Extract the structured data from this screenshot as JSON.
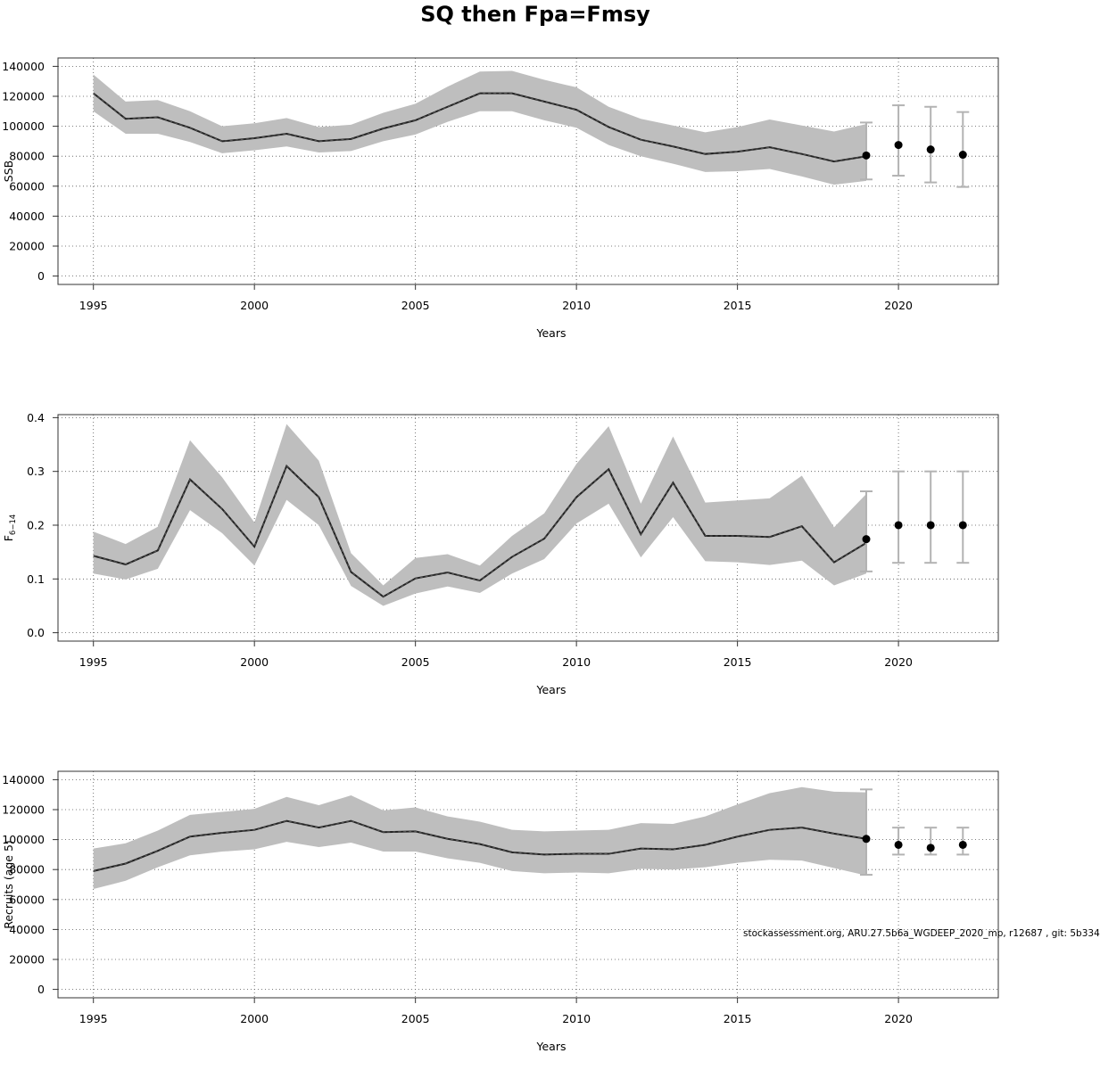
{
  "title": "SQ then Fpa=Fmsy",
  "footnote": "stockassessment.org, ARU.27.5b6a_WGDEEP_2020_mp, r12687 , git: 5b334",
  "colors": {
    "band": "#bebebe",
    "line": "#222222",
    "point": "#000000",
    "errorbar": "#b3b3b3"
  },
  "chart_data": [
    {
      "type": "line",
      "ylabel": "SSB",
      "xlabel": "Years",
      "xlim": [
        1993.9,
        2023.1
      ],
      "ylim": [
        -5600,
        145600
      ],
      "xticks": [
        1995,
        2000,
        2005,
        2010,
        2015,
        2020
      ],
      "yticks": [
        0,
        20000,
        40000,
        60000,
        80000,
        100000,
        120000,
        140000
      ],
      "grid": true,
      "x": [
        1995,
        1996,
        1997,
        1998,
        1999,
        2000,
        2001,
        2002,
        2003,
        2004,
        2005,
        2006,
        2007,
        2008,
        2009,
        2010,
        2011,
        2012,
        2013,
        2014,
        2015,
        2016,
        2017,
        2018,
        2019
      ],
      "y": [
        122000,
        105000,
        106000,
        99000,
        90000,
        92000,
        95000,
        90000,
        91500,
        98500,
        104000,
        113000,
        122000,
        122000,
        116500,
        111000,
        99500,
        91000,
        86500,
        81500,
        83000,
        86000,
        81500,
        76500,
        80000
      ],
      "lower": [
        110000,
        95000,
        95000,
        89500,
        82000,
        84000,
        86500,
        82500,
        83500,
        90000,
        94500,
        103000,
        110000,
        110000,
        104000,
        99000,
        87500,
        80000,
        75000,
        69500,
        70000,
        71500,
        66500,
        61000,
        63500
      ],
      "upper": [
        134500,
        116500,
        117500,
        110000,
        100000,
        102000,
        105500,
        99500,
        101000,
        109000,
        115000,
        126500,
        136500,
        137000,
        131000,
        126000,
        113000,
        105000,
        100500,
        96000,
        99500,
        104500,
        100500,
        96500,
        101500
      ],
      "forecast": [
        {
          "x": 2019,
          "y": 80500,
          "lower": 64500,
          "upper": 102500
        },
        {
          "x": 2020,
          "y": 87500,
          "lower": 67000,
          "upper": 114000
        },
        {
          "x": 2021,
          "y": 84500,
          "lower": 62500,
          "upper": 113000
        },
        {
          "x": 2022,
          "y": 81000,
          "lower": 59500,
          "upper": 109500
        }
      ]
    },
    {
      "type": "line",
      "ylabel": "F",
      "ylabel_sub": "6−14",
      "xlabel": "Years",
      "xlim": [
        1993.9,
        2023.1
      ],
      "ylim": [
        -0.0156,
        0.4056
      ],
      "xticks": [
        1995,
        2000,
        2005,
        2010,
        2015,
        2020
      ],
      "yticks": [
        0.0,
        0.1,
        0.2,
        0.3,
        0.4
      ],
      "ytick_labels": [
        "0.0",
        "0.1",
        "0.2",
        "0.3",
        "0.4"
      ],
      "grid": true,
      "x": [
        1995,
        1996,
        1997,
        1998,
        1999,
        2000,
        2001,
        2002,
        2003,
        2004,
        2005,
        2006,
        2007,
        2008,
        2009,
        2010,
        2011,
        2012,
        2013,
        2014,
        2015,
        2016,
        2017,
        2018,
        2019
      ],
      "y": [
        0.143,
        0.127,
        0.153,
        0.285,
        0.23,
        0.16,
        0.31,
        0.252,
        0.113,
        0.067,
        0.101,
        0.112,
        0.097,
        0.141,
        0.175,
        0.252,
        0.304,
        0.183,
        0.279,
        0.18,
        0.18,
        0.178,
        0.198,
        0.131,
        0.167
      ],
      "lower": [
        0.11,
        0.099,
        0.119,
        0.228,
        0.185,
        0.125,
        0.247,
        0.2,
        0.087,
        0.05,
        0.073,
        0.086,
        0.074,
        0.11,
        0.137,
        0.203,
        0.24,
        0.14,
        0.215,
        0.133,
        0.131,
        0.126,
        0.134,
        0.088,
        0.11
      ],
      "upper": [
        0.188,
        0.165,
        0.197,
        0.358,
        0.289,
        0.205,
        0.388,
        0.32,
        0.148,
        0.088,
        0.139,
        0.146,
        0.125,
        0.18,
        0.222,
        0.314,
        0.384,
        0.24,
        0.365,
        0.242,
        0.246,
        0.25,
        0.292,
        0.196,
        0.258
      ],
      "forecast": [
        {
          "x": 2019,
          "y": 0.174,
          "lower": 0.114,
          "upper": 0.263
        },
        {
          "x": 2020,
          "y": 0.2,
          "lower": 0.13,
          "upper": 0.3
        },
        {
          "x": 2021,
          "y": 0.2,
          "lower": 0.13,
          "upper": 0.3
        },
        {
          "x": 2022,
          "y": 0.2,
          "lower": 0.13,
          "upper": 0.3
        }
      ]
    },
    {
      "type": "line",
      "ylabel": "Recruits (age 5)",
      "xlabel": "Years",
      "xlim": [
        1993.9,
        2023.1
      ],
      "ylim": [
        -5600,
        145600
      ],
      "xticks": [
        1995,
        2000,
        2005,
        2010,
        2015,
        2020
      ],
      "yticks": [
        0,
        20000,
        40000,
        60000,
        80000,
        100000,
        120000,
        140000
      ],
      "grid": true,
      "x": [
        1995,
        1996,
        1997,
        1998,
        1999,
        2000,
        2001,
        2002,
        2003,
        2004,
        2005,
        2006,
        2007,
        2008,
        2009,
        2010,
        2011,
        2012,
        2013,
        2014,
        2015,
        2016,
        2017,
        2018,
        2019
      ],
      "y": [
        79000,
        84000,
        92500,
        102000,
        104500,
        106500,
        112500,
        108000,
        112500,
        105000,
        105500,
        100500,
        97000,
        91500,
        90000,
        90500,
        90500,
        94000,
        93500,
        96500,
        102000,
        106500,
        108000,
        104000,
        100500
      ],
      "lower": [
        67000,
        72500,
        81500,
        89500,
        92000,
        93500,
        98500,
        95000,
        98000,
        92000,
        92000,
        87500,
        84500,
        79000,
        77500,
        78000,
        77500,
        80500,
        80000,
        81500,
        84500,
        86500,
        86000,
        81000,
        76000
      ],
      "upper": [
        94000,
        97500,
        106000,
        116500,
        118500,
        120500,
        128500,
        123000,
        129500,
        119500,
        121500,
        115500,
        112000,
        106500,
        105500,
        106000,
        106500,
        111000,
        110500,
        115500,
        123500,
        131000,
        135000,
        132000,
        131500
      ],
      "forecast": [
        {
          "x": 2019,
          "y": 100500,
          "lower": 76500,
          "upper": 133500
        },
        {
          "x": 2020,
          "y": 96500,
          "lower": 90000,
          "upper": 108000
        },
        {
          "x": 2021,
          "y": 94500,
          "lower": 90000,
          "upper": 108000
        },
        {
          "x": 2022,
          "y": 96500,
          "lower": 90000,
          "upper": 108000
        }
      ]
    }
  ]
}
